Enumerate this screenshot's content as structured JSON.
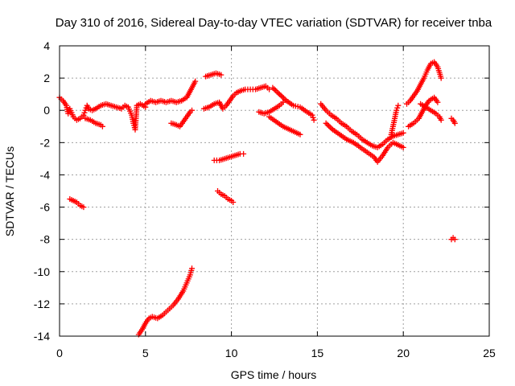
{
  "chart_data": {
    "type": "scatter",
    "title": "Day 310 of 2016, Sidereal Day-to-day VTEC variation (SDTVAR) for receiver tnba",
    "xlabel": "GPS time / hours",
    "ylabel": "SDTVAR / TECUs",
    "xlim": [
      0,
      25
    ],
    "ylim": [
      -14,
      4
    ],
    "xticks": [
      "0",
      "5",
      "10",
      "15",
      "20",
      "25"
    ],
    "yticks": [
      "4",
      "2",
      "0",
      "-2",
      "-4",
      "-6",
      "-8",
      "-10",
      "-12",
      "-14"
    ],
    "grid": true,
    "marker": "+",
    "color": "#ff0000",
    "series": [
      {
        "name": "SDTVAR",
        "segments": [
          [
            [
              0.0,
              0.8
            ],
            [
              0.2,
              0.6
            ],
            [
              0.4,
              0.3
            ],
            [
              0.5,
              -0.2
            ],
            [
              0.6,
              0.1
            ],
            [
              0.8,
              -0.4
            ],
            [
              1.0,
              -0.6
            ],
            [
              1.2,
              -0.5
            ],
            [
              1.4,
              -0.3
            ],
            [
              1.5,
              0.0
            ],
            [
              1.6,
              0.3
            ],
            [
              1.7,
              0.1
            ],
            [
              1.9,
              0.0
            ],
            [
              2.1,
              0.1
            ],
            [
              2.4,
              0.3
            ],
            [
              2.7,
              0.4
            ],
            [
              3.0,
              0.3
            ],
            [
              3.3,
              0.2
            ],
            [
              3.6,
              0.1
            ],
            [
              3.8,
              0.3
            ],
            [
              4.0,
              0.2
            ],
            [
              4.2,
              -0.3
            ],
            [
              4.3,
              -0.8
            ],
            [
              4.4,
              -1.2
            ],
            [
              4.5,
              0.3
            ],
            [
              4.7,
              0.4
            ],
            [
              5.0,
              0.2
            ]
          ],
          [
            [
              1.5,
              -0.5
            ],
            [
              1.8,
              -0.6
            ],
            [
              2.1,
              -0.8
            ],
            [
              2.4,
              -0.9
            ],
            [
              2.5,
              -1.0
            ]
          ],
          [
            [
              5.0,
              0.4
            ],
            [
              5.3,
              0.6
            ],
            [
              5.6,
              0.5
            ],
            [
              5.9,
              0.6
            ],
            [
              6.2,
              0.5
            ],
            [
              6.5,
              0.6
            ],
            [
              6.8,
              0.5
            ],
            [
              7.1,
              0.6
            ],
            [
              7.4,
              0.8
            ],
            [
              7.6,
              1.2
            ],
            [
              7.8,
              1.6
            ],
            [
              7.9,
              1.8
            ]
          ],
          [
            [
              6.5,
              -0.8
            ],
            [
              6.8,
              -0.9
            ],
            [
              7.0,
              -1.0
            ],
            [
              7.2,
              -0.7
            ],
            [
              7.4,
              -0.4
            ],
            [
              7.6,
              -0.1
            ],
            [
              7.7,
              0.0
            ]
          ],
          [
            [
              8.4,
              0.1
            ],
            [
              8.7,
              0.2
            ],
            [
              9.0,
              0.4
            ],
            [
              9.3,
              0.5
            ],
            [
              9.5,
              0.1
            ],
            [
              9.7,
              0.3
            ],
            [
              9.9,
              0.6
            ],
            [
              10.1,
              0.9
            ],
            [
              10.3,
              1.1
            ],
            [
              10.5,
              1.2
            ],
            [
              10.8,
              1.3
            ],
            [
              11.1,
              1.3
            ],
            [
              11.4,
              1.3
            ],
            [
              11.7,
              1.4
            ],
            [
              12.0,
              1.5
            ],
            [
              12.2,
              1.3
            ]
          ],
          [
            [
              8.5,
              2.1
            ],
            [
              8.8,
              2.2
            ],
            [
              9.1,
              2.3
            ],
            [
              9.4,
              2.2
            ]
          ],
          [
            [
              9.0,
              -3.1
            ],
            [
              9.3,
              -3.1
            ],
            [
              9.6,
              -3.0
            ],
            [
              9.9,
              -2.9
            ],
            [
              10.2,
              -2.8
            ],
            [
              10.5,
              -2.7
            ],
            [
              10.7,
              -2.7
            ]
          ],
          [
            [
              9.2,
              -5.0
            ],
            [
              9.4,
              -5.2
            ],
            [
              9.6,
              -5.3
            ],
            [
              9.8,
              -5.5
            ],
            [
              10.0,
              -5.6
            ],
            [
              10.1,
              -5.7
            ]
          ],
          [
            [
              11.6,
              -0.1
            ],
            [
              11.9,
              -0.2
            ],
            [
              12.2,
              -0.1
            ],
            [
              12.5,
              0.1
            ],
            [
              12.8,
              0.3
            ],
            [
              13.0,
              0.5
            ]
          ],
          [
            [
              12.4,
              1.4
            ],
            [
              12.8,
              1.0
            ],
            [
              13.2,
              0.6
            ],
            [
              13.6,
              0.3
            ],
            [
              14.0,
              0.2
            ],
            [
              14.4,
              -0.1
            ],
            [
              14.7,
              -0.3
            ],
            [
              14.8,
              -0.6
            ]
          ],
          [
            [
              12.2,
              -0.4
            ],
            [
              12.6,
              -0.7
            ],
            [
              13.0,
              -1.0
            ],
            [
              13.4,
              -1.2
            ],
            [
              13.8,
              -1.4
            ],
            [
              14.0,
              -1.5
            ]
          ],
          [
            [
              15.2,
              0.4
            ],
            [
              15.5,
              0.0
            ],
            [
              15.8,
              -0.3
            ],
            [
              16.1,
              -0.5
            ],
            [
              16.4,
              -0.8
            ],
            [
              16.7,
              -1.0
            ],
            [
              17.0,
              -1.3
            ],
            [
              17.3,
              -1.5
            ],
            [
              17.6,
              -1.8
            ],
            [
              17.9,
              -2.0
            ],
            [
              18.2,
              -2.2
            ],
            [
              18.5,
              -2.3
            ],
            [
              18.8,
              -2.1
            ],
            [
              19.1,
              -1.8
            ],
            [
              19.4,
              -1.6
            ],
            [
              19.7,
              -1.5
            ],
            [
              20.0,
              -1.4
            ]
          ],
          [
            [
              15.5,
              -0.8
            ],
            [
              15.9,
              -1.2
            ],
            [
              16.3,
              -1.5
            ],
            [
              16.7,
              -1.8
            ],
            [
              17.1,
              -2.0
            ],
            [
              17.5,
              -2.3
            ],
            [
              17.9,
              -2.6
            ],
            [
              18.3,
              -2.9
            ],
            [
              18.5,
              -3.2
            ],
            [
              18.8,
              -2.8
            ],
            [
              19.1,
              -2.3
            ],
            [
              19.4,
              -2.0
            ],
            [
              19.6,
              -2.1
            ],
            [
              19.8,
              -2.2
            ],
            [
              20.0,
              -2.3
            ]
          ],
          [
            [
              19.3,
              -1.5
            ],
            [
              19.4,
              -1.0
            ],
            [
              19.5,
              -0.5
            ],
            [
              19.6,
              0.0
            ],
            [
              19.7,
              0.3
            ]
          ],
          [
            [
              20.3,
              -1.0
            ],
            [
              20.6,
              -0.8
            ],
            [
              20.9,
              -0.5
            ],
            [
              21.1,
              -0.1
            ],
            [
              21.3,
              0.3
            ],
            [
              21.5,
              0.6
            ],
            [
              21.8,
              0.8
            ],
            [
              22.0,
              0.5
            ]
          ],
          [
            [
              20.2,
              0.4
            ],
            [
              20.4,
              0.6
            ],
            [
              20.6,
              0.9
            ],
            [
              20.8,
              1.2
            ],
            [
              21.0,
              1.6
            ],
            [
              21.2,
              2.0
            ],
            [
              21.4,
              2.5
            ],
            [
              21.6,
              2.9
            ],
            [
              21.8,
              3.0
            ],
            [
              22.0,
              2.7
            ],
            [
              22.2,
              2.0
            ]
          ],
          [
            [
              21.0,
              0.4
            ],
            [
              21.3,
              0.2
            ],
            [
              21.6,
              0.0
            ],
            [
              21.9,
              -0.2
            ],
            [
              22.1,
              -0.4
            ],
            [
              22.2,
              -0.6
            ]
          ],
          [
            [
              22.8,
              -0.5
            ],
            [
              22.9,
              -0.6
            ],
            [
              23.0,
              -0.8
            ]
          ],
          [
            [
              22.8,
              -8.0
            ],
            [
              22.9,
              -7.9
            ],
            [
              23.0,
              -8.0
            ]
          ],
          [
            [
              0.6,
              -5.5
            ],
            [
              0.8,
              -5.6
            ],
            [
              1.0,
              -5.7
            ],
            [
              1.2,
              -5.9
            ],
            [
              1.4,
              -6.0
            ]
          ],
          [
            [
              4.6,
              -13.9
            ],
            [
              4.8,
              -13.6
            ],
            [
              5.0,
              -13.2
            ],
            [
              5.2,
              -12.9
            ],
            [
              5.4,
              -12.8
            ],
            [
              5.7,
              -12.9
            ],
            [
              6.0,
              -12.7
            ],
            [
              6.3,
              -12.4
            ],
            [
              6.6,
              -12.1
            ],
            [
              6.9,
              -11.7
            ],
            [
              7.2,
              -11.2
            ],
            [
              7.4,
              -10.7
            ],
            [
              7.6,
              -10.2
            ],
            [
              7.7,
              -9.8
            ]
          ]
        ]
      }
    ]
  }
}
